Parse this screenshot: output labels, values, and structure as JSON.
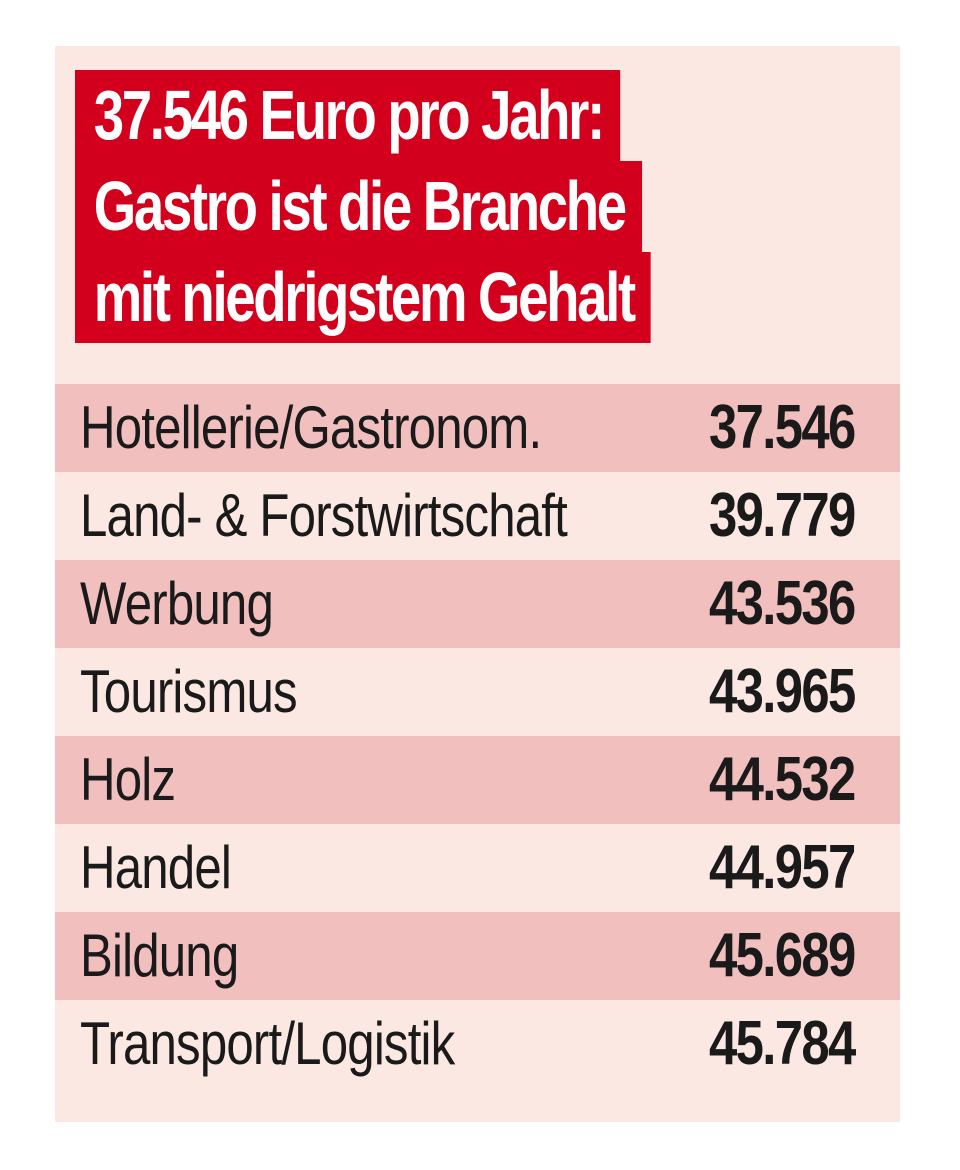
{
  "chart_data": {
    "type": "table",
    "title_lines": [
      "37.546 Euro pro Jahr:",
      "Gastro ist die Branche",
      "mit niedrigstem Gehalt"
    ],
    "rows": [
      {
        "label": "Hotellerie/Gastronom.",
        "value": "37.546",
        "shaded": true
      },
      {
        "label": "Land- & Forstwirtschaft",
        "value": "39.779",
        "shaded": false
      },
      {
        "label": "Werbung",
        "value": "43.536",
        "shaded": true
      },
      {
        "label": "Tourismus",
        "value": "43.965",
        "shaded": false
      },
      {
        "label": "Holz",
        "value": "44.532",
        "shaded": true
      },
      {
        "label": "Handel",
        "value": "44.957",
        "shaded": false
      },
      {
        "label": "Bildung",
        "value": "45.689",
        "shaded": true
      },
      {
        "label": "Transport/Logistik",
        "value": "45.784",
        "shaded": false
      }
    ]
  },
  "colors": {
    "title_background": "#d2001c",
    "card_background": "#fbe8e2",
    "row_shade": "#f2bfbf",
    "text": "#1a1a1a"
  }
}
